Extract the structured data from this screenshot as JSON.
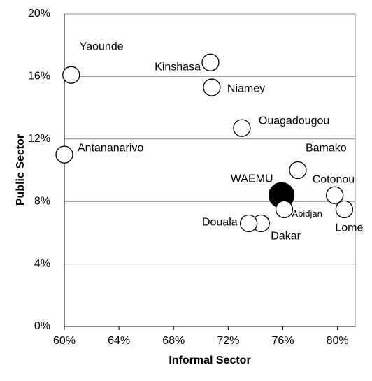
{
  "chart_data": {
    "type": "scatter",
    "x_label": "Informal Sector",
    "y_label": "Public Sector",
    "points": [
      "Yaounde",
      "Kinshasa",
      "Niamey",
      "Ouagadougou",
      "Antananarivo",
      "Bamako",
      "WAEMU",
      "Cotonou",
      "Lome",
      "Abidjan",
      "Dakar",
      "Douala"
    ],
    "x": [
      60.5,
      70.7,
      70.8,
      73.0,
      60.0,
      77.1,
      75.9,
      79.8,
      80.5,
      76.1,
      74.4,
      73.5
    ],
    "y": [
      16.1,
      16.9,
      15.3,
      12.7,
      11.0,
      10.0,
      8.4,
      8.4,
      7.5,
      7.5,
      6.6,
      6.6
    ],
    "colors": [
      "#ffffff",
      "#ffffff",
      "#ffffff",
      "#ffffff",
      "#ffffff",
      "#ffffff",
      "#000000",
      "#ffffff",
      "#ffffff",
      "#ffffff",
      "#ffffff",
      "#ffffff"
    ],
    "xlim": [
      60,
      81.3
    ],
    "xticks": [
      {
        "value": 60,
        "label": "60%"
      },
      {
        "value": 64,
        "label": "64%"
      },
      {
        "value": 68,
        "label": "68%"
      },
      {
        "value": 72,
        "label": "72%"
      },
      {
        "value": 76,
        "label": "76%"
      },
      {
        "value": 80,
        "label": "80%"
      }
    ],
    "ylim": [
      0,
      20
    ],
    "yticks": [
      {
        "value": 0,
        "label": "0%"
      },
      {
        "value": 4,
        "label": "4%"
      },
      {
        "value": 8,
        "label": "8%"
      },
      {
        "value": 12,
        "label": "12%"
      },
      {
        "value": 16,
        "label": "16%"
      },
      {
        "value": 20,
        "label": "20%"
      }
    ],
    "grid": true
  }
}
